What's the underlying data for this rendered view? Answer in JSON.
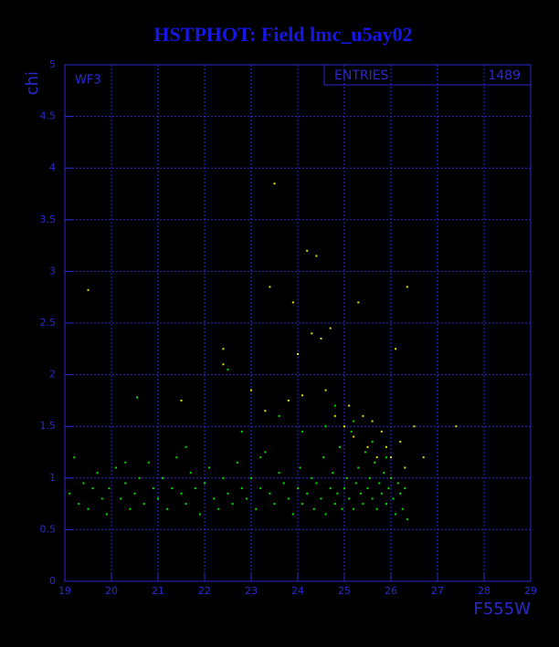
{
  "chart_data": {
    "type": "scatter",
    "title": "HSTPHOT: Field lmc_u5ay02",
    "x_label": "F555W",
    "y_label": "chi",
    "annotation": "WF3",
    "entries_label": "ENTRIES",
    "entries": 1489,
    "xlim": [
      19,
      29
    ],
    "ylim": [
      0,
      5
    ],
    "xticks": [
      19,
      20,
      21,
      22,
      23,
      24,
      25,
      26,
      27,
      28,
      29
    ],
    "yticks": [
      0,
      0.5,
      1,
      1.5,
      2,
      2.5,
      3,
      3.5,
      4,
      4.5,
      5
    ],
    "grid": true,
    "series": [
      {
        "color": "#00e000",
        "x": [
          19.1,
          19.2,
          19.3,
          19.4,
          19.5,
          19.6,
          19.7,
          19.8,
          19.9,
          19.95,
          20.1,
          20.2,
          20.3,
          20.4,
          20.5,
          20.55,
          20.6,
          20.7,
          20.8,
          20.9,
          21.0,
          21.1,
          21.2,
          21.3,
          21.4,
          21.5,
          21.6,
          21.7,
          21.8,
          21.9,
          22.0,
          22.1,
          22.2,
          22.3,
          22.4,
          22.5,
          22.5,
          22.6,
          22.7,
          22.8,
          22.9,
          23.0,
          23.1,
          23.2,
          23.3,
          23.4,
          23.5,
          23.6,
          23.7,
          23.8,
          23.9,
          24.0,
          24.05,
          24.1,
          24.2,
          24.3,
          24.35,
          24.4,
          24.5,
          24.55,
          24.6,
          24.7,
          24.75,
          24.8,
          24.85,
          24.9,
          24.95,
          25.0,
          25.05,
          25.1,
          25.15,
          25.2,
          25.25,
          25.3,
          25.35,
          25.4,
          25.45,
          25.5,
          25.55,
          25.6,
          25.65,
          25.7,
          25.75,
          25.8,
          25.85,
          25.9,
          25.95,
          26.0,
          26.05,
          26.1,
          26.15,
          26.2,
          26.25,
          26.3,
          26.35,
          25.9,
          25.6,
          25.2,
          24.6,
          24.1,
          23.2,
          20.3,
          21.6,
          22.8,
          23.6,
          24.8
        ],
        "y": [
          0.85,
          1.2,
          0.75,
          0.95,
          0.7,
          0.9,
          1.05,
          0.8,
          0.65,
          0.9,
          1.1,
          0.8,
          0.95,
          0.7,
          0.85,
          1.78,
          1.0,
          0.75,
          1.15,
          0.9,
          0.8,
          1.0,
          0.7,
          0.9,
          1.2,
          0.85,
          0.75,
          1.05,
          0.9,
          0.65,
          0.95,
          1.1,
          0.8,
          0.7,
          1.0,
          2.05,
          0.85,
          0.75,
          1.15,
          0.9,
          0.8,
          1.0,
          0.7,
          0.9,
          1.25,
          0.85,
          0.75,
          1.05,
          0.95,
          0.8,
          0.65,
          0.9,
          1.1,
          0.75,
          0.85,
          1.0,
          0.7,
          0.95,
          0.8,
          1.2,
          0.65,
          0.9,
          1.05,
          0.75,
          0.85,
          1.3,
          0.7,
          0.9,
          1.0,
          0.8,
          1.45,
          0.7,
          0.95,
          1.1,
          0.85,
          0.75,
          1.25,
          0.9,
          1.0,
          0.8,
          1.15,
          0.7,
          0.95,
          0.85,
          1.05,
          0.75,
          0.9,
          1.0,
          0.8,
          0.65,
          0.95,
          0.85,
          0.7,
          0.9,
          0.6,
          1.2,
          1.35,
          1.55,
          1.5,
          1.45,
          1.2,
          1.15,
          1.3,
          1.45,
          1.6,
          1.7
        ]
      },
      {
        "color": "#e0e000",
        "x": [
          19.5,
          21.5,
          22.4,
          22.4,
          23.0,
          23.4,
          23.5,
          23.8,
          23.9,
          24.1,
          24.2,
          24.3,
          24.4,
          24.5,
          24.7,
          24.6,
          24.8,
          25.0,
          25.1,
          25.2,
          25.3,
          25.4,
          25.5,
          25.6,
          25.7,
          25.8,
          25.9,
          26.0,
          26.1,
          26.2,
          26.3,
          26.35,
          26.5,
          26.7,
          27.4,
          24.0,
          23.3
        ],
        "y": [
          2.82,
          1.75,
          2.25,
          2.1,
          1.85,
          2.85,
          3.85,
          1.75,
          2.7,
          1.8,
          3.2,
          2.4,
          3.15,
          2.35,
          2.45,
          1.85,
          1.6,
          1.5,
          1.7,
          1.4,
          2.7,
          1.6,
          1.3,
          1.55,
          1.2,
          1.45,
          1.3,
          1.2,
          2.25,
          1.35,
          1.1,
          2.85,
          1.5,
          1.2,
          1.5,
          2.2,
          1.65
        ]
      }
    ]
  }
}
